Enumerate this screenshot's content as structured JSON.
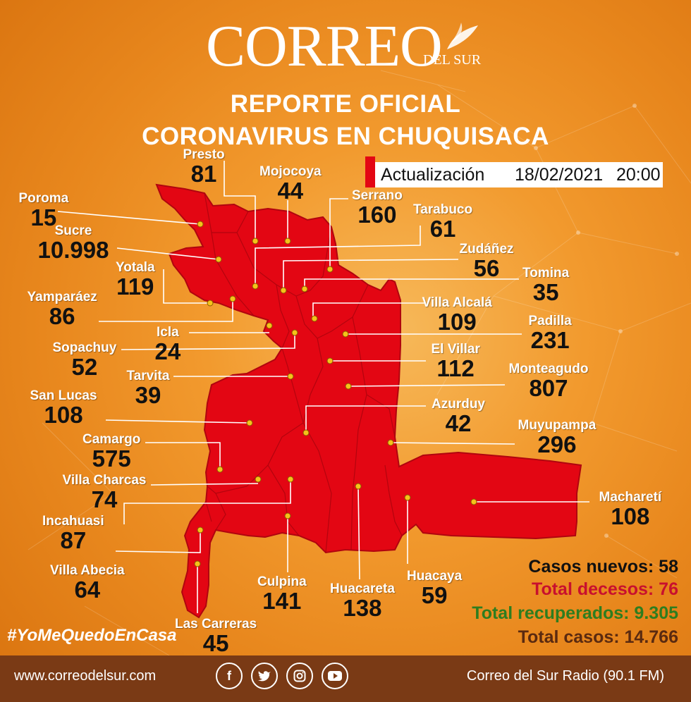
{
  "header": {
    "logo_main": "CORREO",
    "logo_sub": "DEL SUR",
    "title_line1": "REPORTE OFICIAL",
    "title_line2": "CORONAVIRUS EN CHUQUISACA"
  },
  "update": {
    "label": "Actualización",
    "date": "18/02/2021",
    "time": "20:00"
  },
  "colors": {
    "background": "#e8871d",
    "map_fill": "#e30613",
    "stat_new": "#111111",
    "stat_deaths": "#c8102e",
    "stat_recovered": "#2e7d1f",
    "stat_total": "#5a2a10"
  },
  "municipalities": [
    {
      "name": "Presto",
      "cases": "81"
    },
    {
      "name": "Mojocoya",
      "cases": "44"
    },
    {
      "name": "Serrano",
      "cases": "160"
    },
    {
      "name": "Poroma",
      "cases": "15"
    },
    {
      "name": "Sucre",
      "cases": "10.998"
    },
    {
      "name": "Tarabuco",
      "cases": "61"
    },
    {
      "name": "Zudáñez",
      "cases": "56"
    },
    {
      "name": "Yotala",
      "cases": "119"
    },
    {
      "name": "Tomina",
      "cases": "35"
    },
    {
      "name": "Yamparáez",
      "cases": "86"
    },
    {
      "name": "Villa Alcalá",
      "cases": "109"
    },
    {
      "name": "Padilla",
      "cases": "231"
    },
    {
      "name": "Icla",
      "cases": "24"
    },
    {
      "name": "Sopachuy",
      "cases": "52"
    },
    {
      "name": "El Villar",
      "cases": "112"
    },
    {
      "name": "Monteagudo",
      "cases": "807"
    },
    {
      "name": "Tarvita",
      "cases": "39"
    },
    {
      "name": "San Lucas",
      "cases": "108"
    },
    {
      "name": "Azurduy",
      "cases": "42"
    },
    {
      "name": "Muyupampa",
      "cases": "296"
    },
    {
      "name": "Camargo",
      "cases": "575"
    },
    {
      "name": "Villa Charcas",
      "cases": "74"
    },
    {
      "name": "Macharetí",
      "cases": "108"
    },
    {
      "name": "Incahuasi",
      "cases": "87"
    },
    {
      "name": "Villa Abecia",
      "cases": "64"
    },
    {
      "name": "Culpina",
      "cases": "141"
    },
    {
      "name": "Huacareta",
      "cases": "138"
    },
    {
      "name": "Huacaya",
      "cases": "59"
    },
    {
      "name": "Las Carreras",
      "cases": "45"
    }
  ],
  "stats": {
    "new_cases": "Casos nuevos: 58",
    "deaths": "Total decesos: 76",
    "recovered": "Total recuperados: 9.305",
    "total": "Total casos: 14.766"
  },
  "hashtag": "#YoMeQuedoEnCasa",
  "footer": {
    "website": "www.correodelsur.com",
    "radio": "Correo del Sur Radio (90.1 FM)",
    "social_icons": [
      "facebook-icon",
      "twitter-icon",
      "instagram-icon",
      "youtube-icon"
    ]
  }
}
